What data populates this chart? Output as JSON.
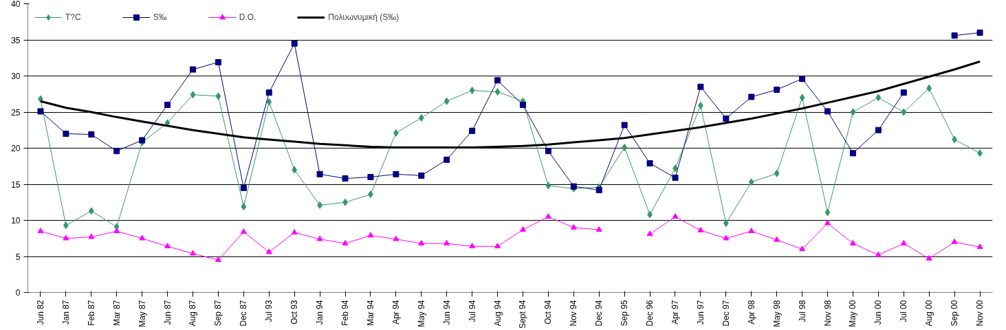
{
  "chart_data": {
    "type": "line",
    "categories": [
      "Jun 82",
      "Jan 87",
      "Feb 87",
      "Mar 87",
      "May 87",
      "Jun 87",
      "Aug 87",
      "Sep 87",
      "Dec 87",
      "Jul 93",
      "Oct 93",
      "Jan 94",
      "Feb 94",
      "Mar 94",
      "Apr 94",
      "May 94",
      "Jun 94",
      "Jul 94",
      "Aug 94",
      "Sept 94",
      "Oct 94",
      "Nov 94",
      "Dec 94",
      "Sep 95",
      "Dec 96",
      "Apr 97",
      "Jun 97",
      "Dec 97",
      "Apr 98",
      "May 98",
      "Jul 98",
      "Nov 98",
      "May 00",
      "Jun 00",
      "Jul 00",
      "Aug 00",
      "Sep 00",
      "Nov 00"
    ],
    "series": [
      {
        "name": "T?C",
        "color": "#339966",
        "marker": "diamond",
        "values": [
          26.8,
          9.3,
          11.3,
          9.1,
          20.8,
          23.5,
          27.4,
          27.2,
          11.9,
          26.4,
          17.0,
          12.1,
          12.5,
          13.6,
          22.1,
          24.2,
          26.5,
          28.0,
          27.8,
          26.5,
          14.8,
          14.4,
          14.6,
          20.1,
          10.8,
          17.2,
          25.9,
          9.6,
          15.3,
          16.5,
          27.0,
          11.1,
          25.0,
          27.0,
          25.0,
          28.3,
          21.2,
          19.3
        ]
      },
      {
        "name": "S‰",
        "color": "#000080",
        "marker": "square",
        "values": [
          25.1,
          22.0,
          21.9,
          19.6,
          21.1,
          26.0,
          30.9,
          31.9,
          14.5,
          27.7,
          34.5,
          16.4,
          15.8,
          16.0,
          16.4,
          16.2,
          18.4,
          22.4,
          29.4,
          26.0,
          19.6,
          14.7,
          14.2,
          23.2,
          17.9,
          15.9,
          28.5,
          24.1,
          27.1,
          28.1,
          29.6,
          25.1,
          19.3,
          22.5,
          27.7,
          null,
          35.6,
          36.0
        ]
      },
      {
        "name": "D.O.",
        "color": "#ff00ff",
        "marker": "triangle",
        "values": [
          8.5,
          7.5,
          7.7,
          8.5,
          7.5,
          6.4,
          5.4,
          4.5,
          8.4,
          5.6,
          8.3,
          7.4,
          6.8,
          7.9,
          7.4,
          6.8,
          6.8,
          6.4,
          6.4,
          8.7,
          10.5,
          9.0,
          8.7,
          null,
          8.1,
          10.5,
          8.6,
          7.5,
          8.5,
          7.3,
          6.0,
          9.6,
          6.8,
          5.2,
          6.8,
          4.7,
          7.0,
          6.3
        ]
      },
      {
        "name": "Πολυωνυμική (S‰)",
        "color": "#000000",
        "marker": "none",
        "values": [
          26.5,
          25.6,
          25.0,
          24.3,
          23.7,
          23.1,
          22.5,
          22.0,
          21.5,
          21.2,
          20.9,
          20.6,
          20.4,
          20.2,
          20.1,
          20.1,
          20.1,
          20.1,
          20.2,
          20.3,
          20.5,
          20.8,
          21.1,
          21.4,
          21.9,
          22.4,
          22.9,
          23.5,
          24.1,
          24.8,
          25.5,
          26.3,
          27.1,
          27.9,
          28.9,
          29.9,
          30.9,
          32.0
        ]
      }
    ],
    "ylim": [
      0,
      40
    ],
    "yticks": [
      0,
      5,
      10,
      15,
      20,
      25,
      30,
      35,
      40
    ],
    "grid": "y",
    "legend": "top",
    "line_style": "solid"
  }
}
